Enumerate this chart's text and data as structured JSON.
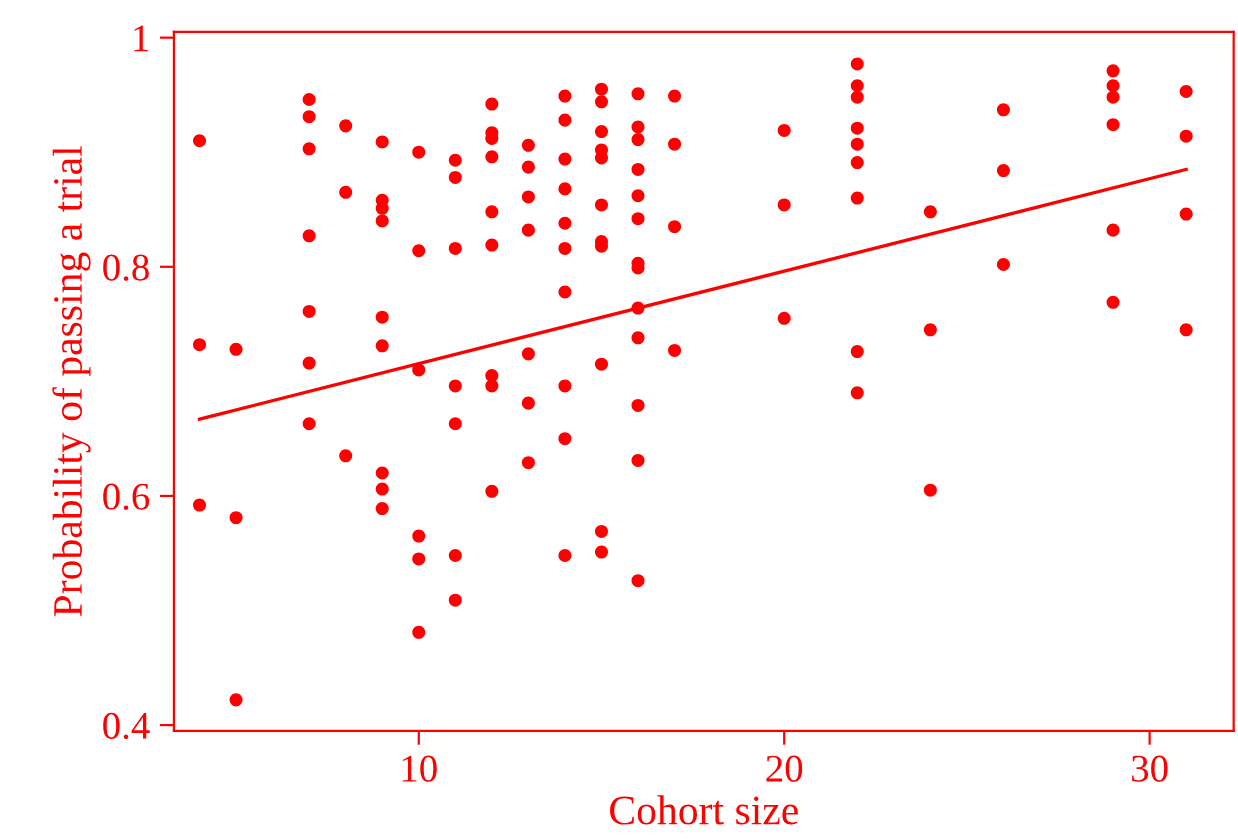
{
  "chart_data": {
    "type": "scatter",
    "xlabel": "Cohort size",
    "ylabel": "Probability of passing a trial",
    "xlim": [
      3.3,
      32.3
    ],
    "ylim": [
      0.395,
      1.005
    ],
    "xticks": [
      10,
      20,
      30
    ],
    "yticks": [
      0.4,
      0.6,
      0.8,
      1
    ],
    "grid": false,
    "legend": false,
    "marker": "circle",
    "series": [
      {
        "color": "#ff0000",
        "x": [
          4,
          4,
          4,
          5,
          5,
          5,
          7,
          7,
          7,
          7,
          7,
          7,
          7,
          8,
          8,
          8,
          9,
          9,
          9,
          9,
          9,
          9,
          9,
          9,
          9,
          10,
          10,
          10,
          10,
          10,
          10,
          11,
          11,
          11,
          11,
          11,
          11,
          11,
          12,
          12,
          12,
          12,
          12,
          12,
          12,
          12,
          12,
          13,
          13,
          13,
          13,
          13,
          13,
          13,
          14,
          14,
          14,
          14,
          14,
          14,
          14,
          14,
          14,
          14,
          15,
          15,
          15,
          15,
          15,
          15,
          15,
          15,
          15,
          15,
          15,
          16,
          16,
          16,
          16,
          16,
          16,
          16,
          16,
          16,
          16,
          16,
          16,
          16,
          17,
          17,
          17,
          17,
          20,
          20,
          20,
          22,
          22,
          22,
          22,
          22,
          22,
          22,
          22,
          22,
          24,
          24,
          24,
          26,
          26,
          26,
          29,
          29,
          29,
          29,
          29,
          29,
          31,
          31,
          31,
          31
        ],
        "values": [
          0.91,
          0.732,
          0.592,
          0.728,
          0.581,
          0.422,
          0.946,
          0.931,
          0.903,
          0.827,
          0.761,
          0.716,
          0.663,
          0.923,
          0.865,
          0.635,
          0.909,
          0.858,
          0.851,
          0.84,
          0.756,
          0.731,
          0.62,
          0.606,
          0.589,
          0.9,
          0.814,
          0.71,
          0.565,
          0.545,
          0.481,
          0.893,
          0.878,
          0.816,
          0.696,
          0.663,
          0.548,
          0.509,
          0.942,
          0.917,
          0.912,
          0.896,
          0.848,
          0.819,
          0.705,
          0.696,
          0.604,
          0.906,
          0.887,
          0.861,
          0.832,
          0.724,
          0.681,
          0.629,
          0.949,
          0.928,
          0.894,
          0.868,
          0.838,
          0.816,
          0.778,
          0.696,
          0.65,
          0.548,
          0.955,
          0.944,
          0.918,
          0.902,
          0.895,
          0.854,
          0.822,
          0.818,
          0.715,
          0.569,
          0.551,
          0.951,
          0.922,
          0.911,
          0.885,
          0.862,
          0.842,
          0.803,
          0.799,
          0.764,
          0.738,
          0.679,
          0.631,
          0.526,
          0.949,
          0.907,
          0.835,
          0.727,
          0.919,
          0.854,
          0.755,
          0.977,
          0.958,
          0.948,
          0.921,
          0.907,
          0.891,
          0.86,
          0.726,
          0.69,
          0.848,
          0.745,
          0.605,
          0.937,
          0.884,
          0.802,
          0.971,
          0.958,
          0.948,
          0.924,
          0.832,
          0.769,
          0.953,
          0.914,
          0.846,
          0.745
        ]
      },
      {
        "type": "line",
        "color": "#ff0000",
        "marker": "none",
        "x": [
          4,
          31
        ],
        "values": [
          0.667,
          0.885
        ]
      }
    ]
  }
}
